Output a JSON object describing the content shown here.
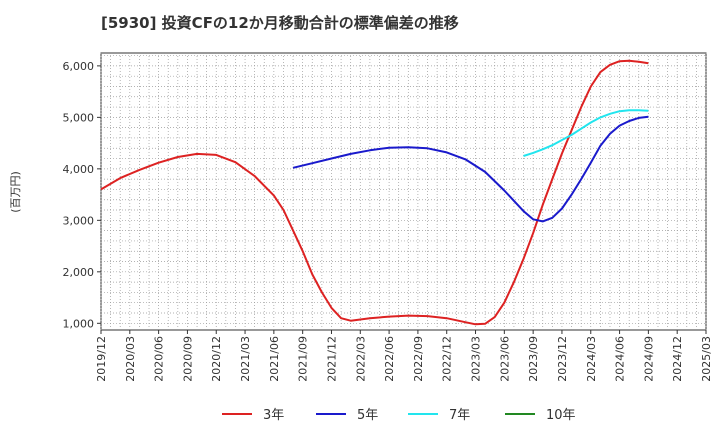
{
  "chart_data": {
    "type": "line",
    "title": "[5930]  投資CFの12か月移動合計の標準偏差の推移",
    "ylabel": "(百万円)",
    "xlabel": "",
    "ylim": [
      870,
      6250
    ],
    "yticks": [
      1000,
      2000,
      3000,
      4000,
      5000,
      6000
    ],
    "ytick_labels": [
      "1,000",
      "2,000",
      "3,000",
      "4,000",
      "5,000",
      "6,000"
    ],
    "xlim": [
      "2019-12",
      "2025-03"
    ],
    "xticks": [
      "2019/12",
      "2020/03",
      "2020/06",
      "2020/09",
      "2020/12",
      "2021/03",
      "2021/06",
      "2021/09",
      "2021/12",
      "2022/03",
      "2022/06",
      "2022/09",
      "2022/12",
      "2023/03",
      "2023/06",
      "2023/09",
      "2023/12",
      "2024/03",
      "2024/06",
      "2024/09",
      "2024/12",
      "2025/03"
    ],
    "grid": true,
    "legend_position": "bottom",
    "series": [
      {
        "name": "3年",
        "color": "#dd2222",
        "x": [
          "2019-12",
          "2020-02",
          "2020-04",
          "2020-06",
          "2020-08",
          "2020-10",
          "2020-12",
          "2021-02",
          "2021-04",
          "2021-06",
          "2021-07",
          "2021-08",
          "2021-09",
          "2021-10",
          "2021-11",
          "2021-12",
          "2022-01",
          "2022-02",
          "2022-04",
          "2022-06",
          "2022-08",
          "2022-10",
          "2022-12",
          "2023-02",
          "2023-03",
          "2023-04",
          "2023-05",
          "2023-06",
          "2023-07",
          "2023-08",
          "2023-09",
          "2023-10",
          "2023-11",
          "2023-12",
          "2024-01",
          "2024-02",
          "2024-03",
          "2024-04",
          "2024-05",
          "2024-06",
          "2024-07",
          "2024-08",
          "2024-09"
        ],
        "values": [
          3600,
          3820,
          3980,
          4120,
          4230,
          4290,
          4270,
          4130,
          3860,
          3480,
          3200,
          2800,
          2400,
          1950,
          1600,
          1300,
          1100,
          1050,
          1100,
          1130,
          1150,
          1140,
          1100,
          1020,
          980,
          990,
          1120,
          1400,
          1800,
          2250,
          2750,
          3300,
          3800,
          4300,
          4750,
          5200,
          5600,
          5880,
          6020,
          6090,
          6100,
          6080,
          6050
        ]
      },
      {
        "name": "5年",
        "color": "#1a1acc",
        "x": [
          "2021-08",
          "2021-10",
          "2021-12",
          "2022-02",
          "2022-04",
          "2022-06",
          "2022-08",
          "2022-10",
          "2022-12",
          "2023-02",
          "2023-04",
          "2023-06",
          "2023-07",
          "2023-08",
          "2023-09",
          "2023-10",
          "2023-11",
          "2023-12",
          "2024-01",
          "2024-02",
          "2024-03",
          "2024-04",
          "2024-05",
          "2024-06",
          "2024-07",
          "2024-08",
          "2024-09"
        ],
        "values": [
          4020,
          4110,
          4200,
          4290,
          4360,
          4410,
          4420,
          4400,
          4320,
          4180,
          3940,
          3580,
          3380,
          3180,
          3020,
          2980,
          3050,
          3230,
          3500,
          3800,
          4120,
          4450,
          4680,
          4840,
          4930,
          4990,
          5010
        ]
      },
      {
        "name": "7年",
        "color": "#22e5ee",
        "x": [
          "2023-08",
          "2023-09",
          "2023-10",
          "2023-11",
          "2023-12",
          "2024-01",
          "2024-02",
          "2024-03",
          "2024-04",
          "2024-05",
          "2024-06",
          "2024-07",
          "2024-08",
          "2024-09"
        ],
        "values": [
          4250,
          4310,
          4380,
          4460,
          4560,
          4660,
          4780,
          4900,
          5000,
          5070,
          5120,
          5140,
          5140,
          5130
        ]
      },
      {
        "name": "10年",
        "color": "#228822",
        "x": [],
        "values": []
      }
    ]
  }
}
